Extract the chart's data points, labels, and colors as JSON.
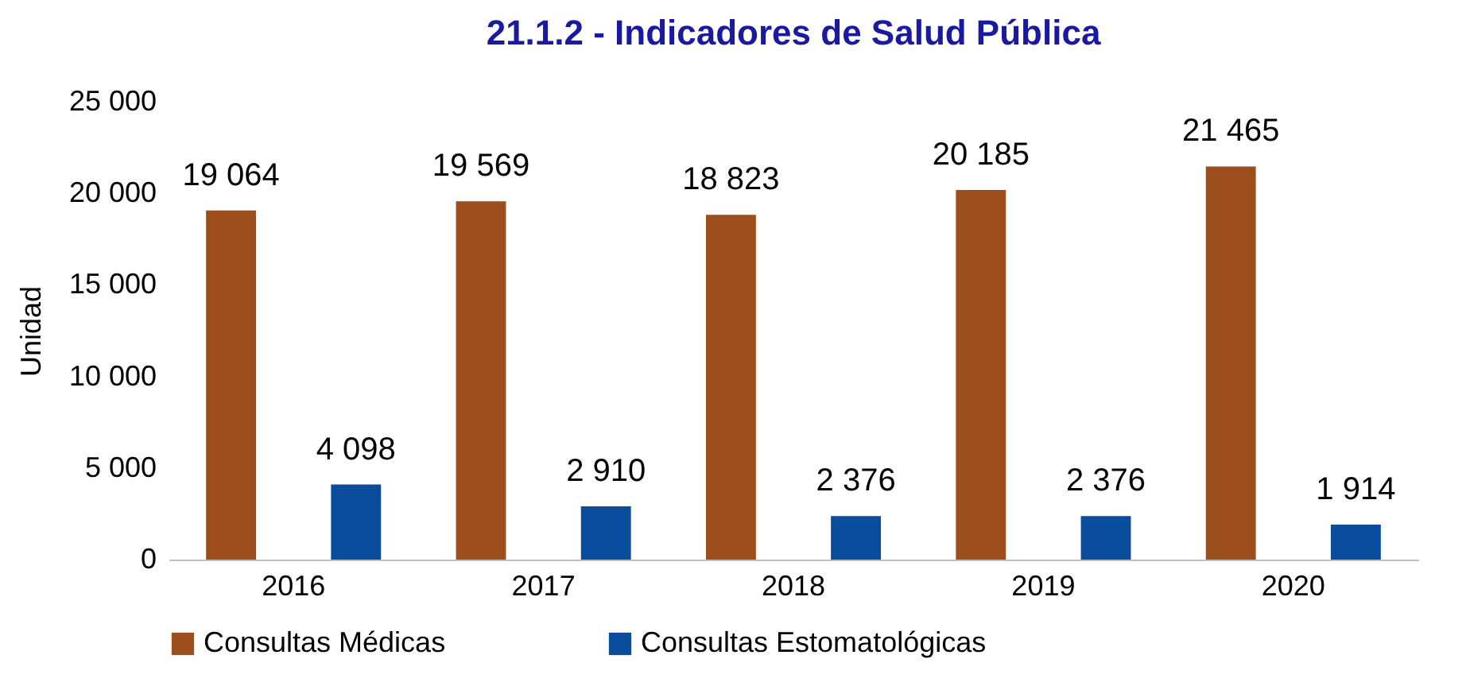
{
  "chart_data": {
    "type": "bar",
    "title": "21.1.2 - Indicadores de Salud Pública",
    "ylabel": "Unidad",
    "categories": [
      "2016",
      "2017",
      "2018",
      "2019",
      "2020"
    ],
    "series": [
      {
        "name": "Consultas Médicas",
        "color": "#9c4f1c",
        "values": [
          19064,
          19569,
          18823,
          20185,
          21465
        ],
        "value_labels": [
          "19 064",
          "19 569",
          "18 823",
          "20 185",
          "21 465"
        ]
      },
      {
        "name": "Consultas  Estomatológicas",
        "color": "#0a4d9c",
        "values": [
          4098,
          2910,
          2376,
          2376,
          1914
        ],
        "value_labels": [
          "4 098",
          "2 910",
          "2 376",
          "2 376",
          "1 914"
        ]
      }
    ],
    "ylim": [
      0,
      25000
    ],
    "yticks": [
      {
        "value": 0,
        "label": "0"
      },
      {
        "value": 5000,
        "label": "5 000"
      },
      {
        "value": 10000,
        "label": "10 000"
      },
      {
        "value": 15000,
        "label": "15 000"
      },
      {
        "value": 20000,
        "label": "20 000"
      },
      {
        "value": 25000,
        "label": "25 000"
      }
    ],
    "grid": false,
    "legend": "bottom"
  }
}
